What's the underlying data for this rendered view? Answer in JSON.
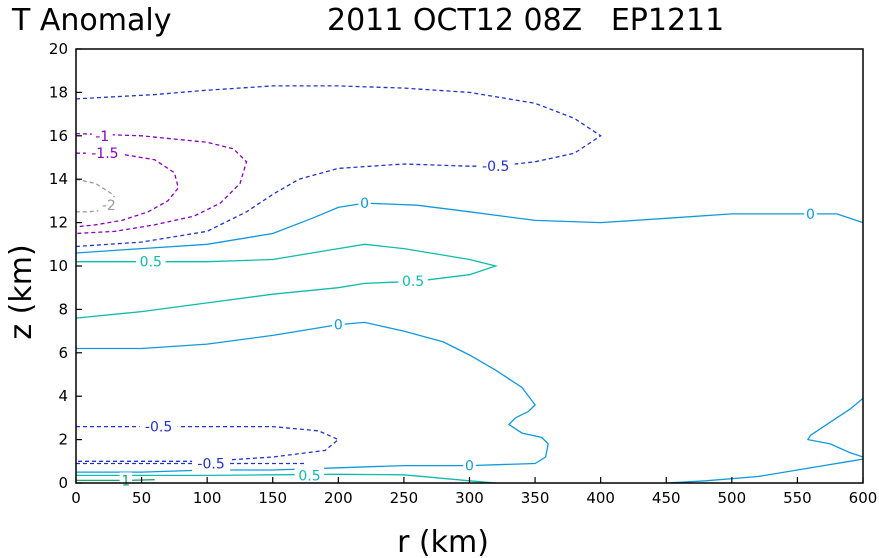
{
  "chart_data": {
    "type": "contour",
    "title_left": "T Anomaly",
    "title_right": "2011 OCT12 08Z   EP1211",
    "xlabel": "r (km)",
    "ylabel": "z (km)",
    "xlim": [
      0,
      600
    ],
    "ylim": [
      0,
      20
    ],
    "x_ticks": [
      "0",
      "50",
      "100",
      "150",
      "200",
      "250",
      "300",
      "350",
      "400",
      "450",
      "500",
      "550",
      "600"
    ],
    "y_ticks": [
      "0",
      "2",
      "4",
      "6",
      "8",
      "10",
      "12",
      "14",
      "16",
      "18",
      "20"
    ],
    "grid": false,
    "contours": [
      {
        "level": "-0.5",
        "color": "#2233cc",
        "dashed": true,
        "points": [
          [
            0,
            17.7
          ],
          [
            30,
            17.8
          ],
          [
            60,
            17.9
          ],
          [
            100,
            18.1
          ],
          [
            150,
            18.3
          ],
          [
            200,
            18.3
          ],
          [
            250,
            18.2
          ],
          [
            300,
            18.0
          ],
          [
            350,
            17.5
          ],
          [
            380,
            16.8
          ],
          [
            400,
            16.0
          ],
          [
            380,
            15.2
          ],
          [
            350,
            14.8
          ],
          [
            320,
            14.6
          ],
          [
            300,
            14.6
          ],
          [
            250,
            14.7
          ],
          [
            200,
            14.5
          ],
          [
            170,
            14.0
          ],
          [
            150,
            13.3
          ],
          [
            130,
            12.5
          ],
          [
            100,
            11.6
          ],
          [
            50,
            11.1
          ],
          [
            0,
            10.9
          ]
        ]
      },
      {
        "level": "-1",
        "color": "#8800bb",
        "dashed": true,
        "points": [
          [
            0,
            16.1
          ],
          [
            50,
            16.0
          ],
          [
            100,
            15.7
          ],
          [
            120,
            15.4
          ],
          [
            130,
            14.8
          ],
          [
            125,
            13.8
          ],
          [
            110,
            12.9
          ],
          [
            90,
            12.3
          ],
          [
            60,
            11.9
          ],
          [
            30,
            11.6
          ],
          [
            0,
            11.5
          ]
        ]
      },
      {
        "level": "-1.5",
        "color": "#8800bb",
        "dashed": true,
        "points": [
          [
            0,
            15.2
          ],
          [
            30,
            15.2
          ],
          [
            60,
            14.9
          ],
          [
            75,
            14.3
          ],
          [
            78,
            13.6
          ],
          [
            70,
            13.0
          ],
          [
            55,
            12.5
          ],
          [
            35,
            12.1
          ],
          [
            15,
            11.9
          ],
          [
            0,
            11.8
          ]
        ]
      },
      {
        "level": "-2",
        "color": "#999999",
        "dashed": true,
        "points": [
          [
            0,
            14.0
          ],
          [
            15,
            13.8
          ],
          [
            28,
            13.3
          ],
          [
            32,
            12.9
          ],
          [
            25,
            12.6
          ],
          [
            10,
            12.5
          ],
          [
            0,
            12.5
          ]
        ]
      },
      {
        "level": "0",
        "color": "#1199dd",
        "dashed": false,
        "points": [
          [
            0,
            10.6
          ],
          [
            50,
            10.8
          ],
          [
            100,
            11.0
          ],
          [
            150,
            11.5
          ],
          [
            180,
            12.2
          ],
          [
            200,
            12.7
          ],
          [
            220,
            12.9
          ],
          [
            260,
            12.8
          ],
          [
            300,
            12.5
          ],
          [
            350,
            12.1
          ],
          [
            400,
            12.0
          ],
          [
            450,
            12.2
          ],
          [
            500,
            12.4
          ],
          [
            550,
            12.4
          ],
          [
            580,
            12.4
          ],
          [
            600,
            12.0
          ]
        ]
      },
      {
        "level": "0.5",
        "color": "#11bbaa",
        "dashed": false,
        "points": [
          [
            0,
            10.2
          ],
          [
            50,
            10.2
          ],
          [
            100,
            10.2
          ],
          [
            150,
            10.3
          ],
          [
            200,
            10.8
          ],
          [
            220,
            11.0
          ],
          [
            250,
            10.8
          ],
          [
            280,
            10.5
          ],
          [
            300,
            10.3
          ],
          [
            320,
            10.0
          ],
          [
            300,
            9.6
          ],
          [
            260,
            9.3
          ],
          [
            220,
            9.2
          ],
          [
            200,
            9.0
          ],
          [
            150,
            8.7
          ],
          [
            100,
            8.3
          ],
          [
            50,
            7.9
          ],
          [
            0,
            7.6
          ]
        ]
      },
      {
        "level": "0",
        "color": "#1199dd",
        "dashed": false,
        "points": [
          [
            0,
            6.2
          ],
          [
            50,
            6.2
          ],
          [
            100,
            6.4
          ],
          [
            150,
            6.8
          ],
          [
            200,
            7.3
          ],
          [
            220,
            7.4
          ],
          [
            250,
            7.0
          ],
          [
            280,
            6.5
          ],
          [
            300,
            5.9
          ],
          [
            320,
            5.2
          ],
          [
            340,
            4.4
          ],
          [
            350,
            3.6
          ],
          [
            345,
            3.3
          ],
          [
            335,
            3.0
          ],
          [
            330,
            2.7
          ],
          [
            340,
            2.3
          ],
          [
            355,
            2.1
          ],
          [
            360,
            1.8
          ],
          [
            358,
            1.2
          ],
          [
            350,
            0.9
          ],
          [
            300,
            0.8
          ],
          [
            250,
            0.8
          ],
          [
            200,
            0.7
          ],
          [
            150,
            0.6
          ],
          [
            100,
            0.6
          ],
          [
            50,
            0.5
          ],
          [
            0,
            0.5
          ]
        ]
      },
      {
        "level": "-0.5",
        "color": "#2233cc",
        "dashed": true,
        "points": [
          [
            0,
            2.6
          ],
          [
            50,
            2.6
          ],
          [
            100,
            2.6
          ],
          [
            150,
            2.6
          ],
          [
            185,
            2.4
          ],
          [
            200,
            2.0
          ],
          [
            190,
            1.5
          ],
          [
            150,
            1.2
          ],
          [
            100,
            1.0
          ],
          [
            50,
            1.0
          ],
          [
            0,
            1.0
          ]
        ]
      },
      {
        "level": "-0.5",
        "color": "#2233cc",
        "dashed": true,
        "points": [
          [
            0,
            0.9
          ],
          [
            50,
            0.9
          ],
          [
            100,
            0.9
          ],
          [
            150,
            0.9
          ],
          [
            175,
            0.9
          ]
        ]
      },
      {
        "level": "0.5",
        "color": "#11bbaa",
        "dashed": false,
        "points": [
          [
            0,
            0.35
          ],
          [
            50,
            0.35
          ],
          [
            100,
            0.35
          ],
          [
            150,
            0.38
          ],
          [
            200,
            0.4
          ],
          [
            250,
            0.38
          ],
          [
            300,
            0.1
          ],
          [
            320,
            0
          ]
        ]
      },
      {
        "level": "1",
        "color": "#11aa66",
        "dashed": false,
        "points": [
          [
            0,
            0.12
          ],
          [
            40,
            0.12
          ],
          [
            60,
            0.15
          ]
        ]
      },
      {
        "level": "0",
        "color": "#1199dd",
        "dashed": false,
        "points": [
          [
            450,
            0
          ],
          [
            480,
            0.1
          ],
          [
            520,
            0.3
          ],
          [
            550,
            0.6
          ],
          [
            570,
            0.8
          ],
          [
            590,
            1.0
          ],
          [
            600,
            1.1
          ]
        ]
      },
      {
        "level": "0",
        "color": "#1199dd",
        "dashed": false,
        "points": [
          [
            600,
            3.9
          ],
          [
            590,
            3.4
          ],
          [
            575,
            2.8
          ],
          [
            560,
            2.2
          ],
          [
            558,
            2.0
          ],
          [
            575,
            1.8
          ],
          [
            590,
            1.4
          ],
          [
            600,
            1.2
          ]
        ]
      }
    ],
    "contour_labels": [
      {
        "text": "-0.5",
        "x": 320,
        "y": 14.6,
        "color": "#2233cc"
      },
      {
        "text": "-1",
        "x": 20,
        "y": 16.0,
        "color": "#8800bb"
      },
      {
        "text": "-1.5",
        "x": 22,
        "y": 15.2,
        "color": "#8800bb"
      },
      {
        "text": "-2",
        "x": 25,
        "y": 12.8,
        "color": "#999999"
      },
      {
        "text": "0",
        "x": 220,
        "y": 12.9,
        "color": "#1199dd"
      },
      {
        "text": "0",
        "x": 560,
        "y": 12.4,
        "color": "#1199dd"
      },
      {
        "text": "0.5",
        "x": 57,
        "y": 10.2,
        "color": "#11bbaa"
      },
      {
        "text": "0.5",
        "x": 257,
        "y": 9.3,
        "color": "#11bbaa"
      },
      {
        "text": "0",
        "x": 200,
        "y": 7.3,
        "color": "#1199dd"
      },
      {
        "text": "-0.5",
        "x": 63,
        "y": 2.6,
        "color": "#2233cc"
      },
      {
        "text": "-0.5",
        "x": 103,
        "y": 0.9,
        "color": "#2233cc"
      },
      {
        "text": "0",
        "x": 300,
        "y": 0.8,
        "color": "#1199dd"
      },
      {
        "text": "0.5",
        "x": 178,
        "y": 0.35,
        "color": "#11bbaa"
      },
      {
        "text": "1",
        "x": 38,
        "y": 0.12,
        "color": "#11aa66"
      }
    ]
  }
}
